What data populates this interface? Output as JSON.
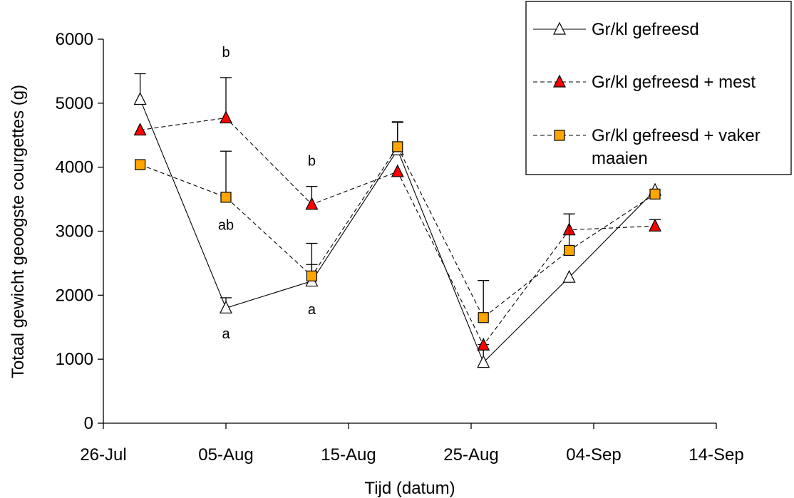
{
  "chart_data": {
    "type": "line",
    "title": "",
    "xlabel": "Tijd (datum)",
    "ylabel": "Totaal gewicht geoogste courgettes (g)",
    "ylim": [
      0,
      6000
    ],
    "yticks": [
      0,
      1000,
      2000,
      3000,
      4000,
      5000,
      6000
    ],
    "xlim_day": [
      0,
      50
    ],
    "xticks": [
      {
        "day": 0,
        "label": "26-Jul"
      },
      {
        "day": 10,
        "label": "05-Aug"
      },
      {
        "day": 20,
        "label": "15-Aug"
      },
      {
        "day": 30,
        "label": "25-Aug"
      },
      {
        "day": 40,
        "label": "04-Sep"
      },
      {
        "day": 50,
        "label": "14-Sep"
      }
    ],
    "grid": false,
    "legend_position": "top-right",
    "series": [
      {
        "name": "Gr/kl gefreesd",
        "line_style": "solid",
        "marker": "triangle-open",
        "marker_color": "#ffffff",
        "x": [
          3,
          10,
          17,
          24,
          31,
          38,
          45
        ],
        "y": [
          5060,
          1800,
          2220,
          4270,
          950,
          2280,
          3640
        ],
        "error": [
          400,
          160,
          260,
          430,
          280,
          0,
          0
        ]
      },
      {
        "name": "Gr/kl gefreesd + mest",
        "line_style": "dashed",
        "marker": "triangle-filled",
        "marker_color": "#ff0000",
        "x": [
          3,
          10,
          17,
          24,
          31,
          38,
          45
        ],
        "y": [
          4580,
          4770,
          3420,
          3930,
          1220,
          3020,
          3080
        ],
        "error": [
          0,
          630,
          280,
          0,
          0,
          250,
          100
        ]
      },
      {
        "name": "Gr/kl gefreesd + vaker maaien",
        "line_style": "dashed",
        "marker": "square-filled",
        "marker_color": "#ffa500",
        "x": [
          3,
          10,
          17,
          24,
          31,
          38,
          45
        ],
        "y": [
          4040,
          3530,
          2300,
          4320,
          1650,
          2700,
          3580
        ],
        "error": [
          0,
          720,
          510,
          390,
          580,
          570,
          0
        ]
      }
    ],
    "annotations": [
      {
        "text": "b",
        "x": 10,
        "y": 5800
      },
      {
        "text": "ab",
        "x": 10,
        "y": 3100
      },
      {
        "text": "a",
        "x": 10,
        "y": 1400
      },
      {
        "text": "b",
        "x": 17,
        "y": 4100
      },
      {
        "text": "a",
        "x": 17,
        "y": 1780
      }
    ],
    "legend_lines": [
      [
        "Gr/kl gefreesd"
      ],
      [
        "Gr/kl gefreesd + mest"
      ],
      [
        "Gr/kl gefreesd + vaker",
        "maaien"
      ]
    ]
  }
}
